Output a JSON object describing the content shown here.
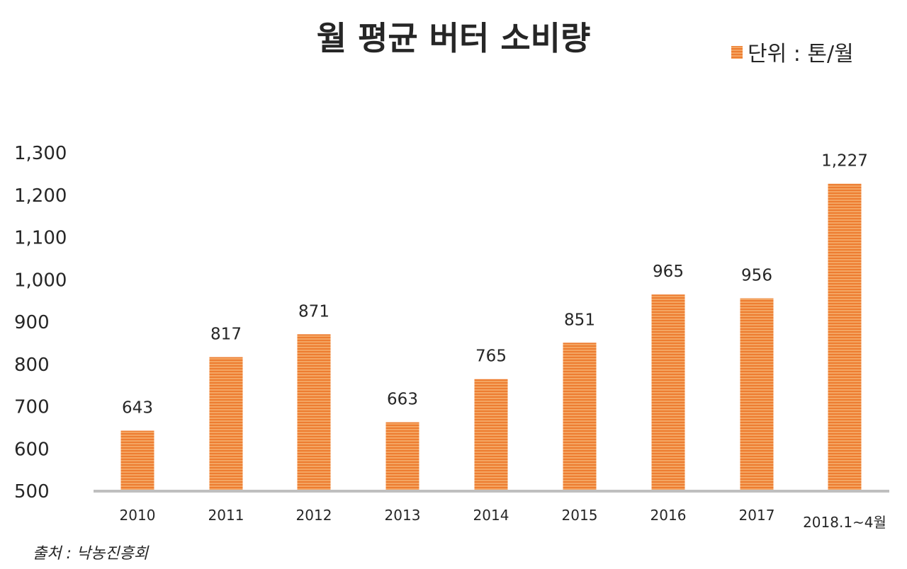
{
  "chart_data": {
    "type": "bar",
    "title": "월 평균 버터 소비량",
    "legend": {
      "label": "단위 : 톤/월",
      "position": "top-right"
    },
    "source": "출처 : 낙농진흥회",
    "categories": [
      "2010",
      "2011",
      "2012",
      "2013",
      "2014",
      "2015",
      "2016",
      "2017",
      "2018.1~4월"
    ],
    "values": [
      643,
      817,
      871,
      663,
      765,
      851,
      965,
      956,
      1227
    ],
    "data_labels": [
      "643",
      "817",
      "871",
      "663",
      "765",
      "851",
      "965",
      "956",
      "1,227"
    ],
    "y_ticks": [
      "500",
      "600",
      "700",
      "800",
      "900",
      "1,000",
      "1,100",
      "1,200",
      "1,300"
    ],
    "y_tick_values": [
      500,
      600,
      700,
      800,
      900,
      1000,
      1100,
      1200,
      1300
    ],
    "ylim": [
      500,
      1300
    ],
    "grid": false,
    "colors": {
      "bar": "#F4A562",
      "bar_stripe": "#ED7D31",
      "axis": "#BFBFBF",
      "text": "#262626"
    }
  }
}
